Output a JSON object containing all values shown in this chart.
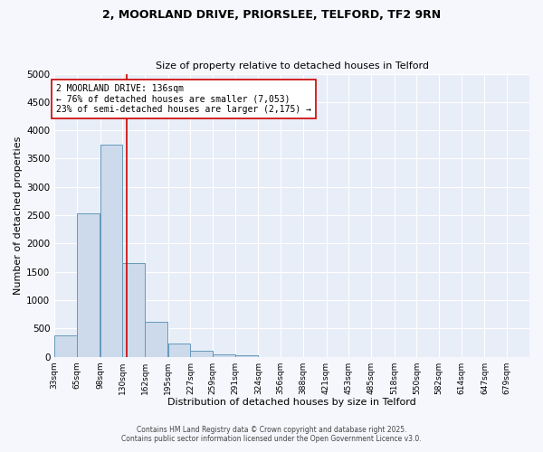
{
  "title_line1": "2, MOORLAND DRIVE, PRIORSLEE, TELFORD, TF2 9RN",
  "title_line2": "Size of property relative to detached houses in Telford",
  "xlabel": "Distribution of detached houses by size in Telford",
  "ylabel": "Number of detached properties",
  "bar_color": "#ccdaeb",
  "bar_edge_color": "#6699bb",
  "background_color": "#e8eef8",
  "fig_background_color": "#f5f7fc",
  "grid_color": "#ffffff",
  "bins": [
    33,
    65,
    98,
    130,
    162,
    195,
    227,
    259,
    291,
    324,
    356,
    388,
    421,
    453,
    485,
    518,
    550,
    582,
    614,
    647,
    679
  ],
  "values": [
    380,
    2530,
    3750,
    1650,
    620,
    240,
    105,
    45,
    30,
    0,
    0,
    0,
    0,
    0,
    0,
    0,
    0,
    0,
    0,
    0
  ],
  "property_size": 136,
  "red_line_color": "#cc0000",
  "annotation_line1": "2 MOORLAND DRIVE: 136sqm",
  "annotation_line2": "← 76% of detached houses are smaller (7,053)",
  "annotation_line3": "23% of semi-detached houses are larger (2,175) →",
  "annotation_box_color": "#ffffff",
  "annotation_border_color": "#cc0000",
  "ylim": [
    0,
    5000
  ],
  "yticks": [
    0,
    500,
    1000,
    1500,
    2000,
    2500,
    3000,
    3500,
    4000,
    4500,
    5000
  ],
  "footnote1": "Contains HM Land Registry data © Crown copyright and database right 2025.",
  "footnote2": "Contains public sector information licensed under the Open Government Licence v3.0."
}
